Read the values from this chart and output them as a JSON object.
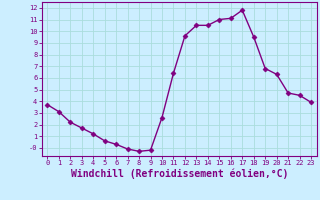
{
  "x": [
    0,
    1,
    2,
    3,
    4,
    5,
    6,
    7,
    8,
    9,
    10,
    11,
    12,
    13,
    14,
    15,
    16,
    17,
    18,
    19,
    20,
    21,
    22,
    23
  ],
  "y": [
    3.7,
    3.1,
    2.2,
    1.7,
    1.2,
    0.6,
    0.3,
    -0.1,
    -0.3,
    -0.2,
    2.6,
    6.4,
    9.6,
    10.5,
    10.5,
    11.0,
    11.1,
    11.8,
    9.5,
    6.8,
    6.3,
    4.7,
    4.5,
    3.9
  ],
  "line_color": "#800080",
  "marker": "D",
  "markersize": 2.5,
  "linewidth": 1.0,
  "xlabel": "Windchill (Refroidissement éolien,°C)",
  "xlabel_fontsize": 7,
  "ytick_labels": [
    "-0",
    "1",
    "2",
    "3",
    "4",
    "5",
    "6",
    "7",
    "8",
    "9",
    "10",
    "11",
    "12"
  ],
  "ytick_values": [
    0,
    1,
    2,
    3,
    4,
    5,
    6,
    7,
    8,
    9,
    10,
    11,
    12
  ],
  "xlim": [
    -0.5,
    23.5
  ],
  "ylim": [
    -0.7,
    12.5
  ],
  "bg_color": "#cceeff",
  "grid_color": "#aadddd",
  "tick_color": "#800080",
  "label_color": "#800080"
}
